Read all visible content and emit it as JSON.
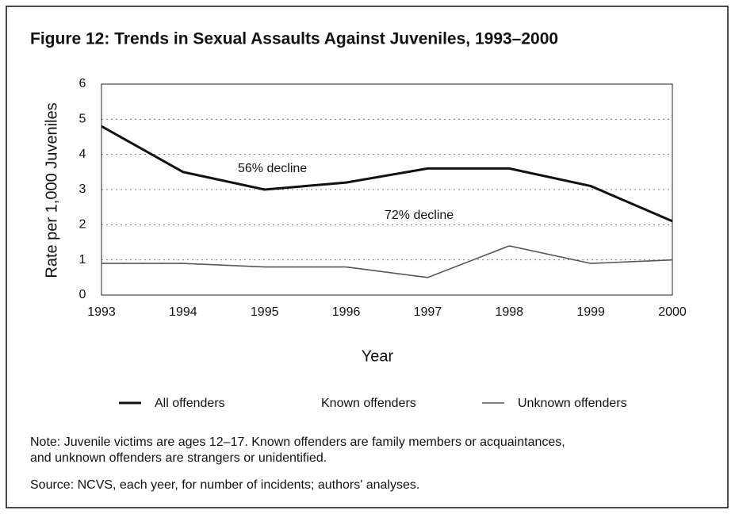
{
  "chart_data": {
    "type": "line",
    "title": "Figure 12: Trends in Sexual Assaults Against Juveniles, 1993–2000",
    "x_label": "Year",
    "y_label": "Rate per 1,000 Juveniles",
    "categories": [
      "1993",
      "1994",
      "1995",
      "1996",
      "1997",
      "1998",
      "1999",
      "2000"
    ],
    "series": [
      {
        "name": "All offenders",
        "color": "#111111",
        "values": [
          4.8,
          3.5,
          3.0,
          3.2,
          3.6,
          3.6,
          3.1,
          2.1
        ]
      },
      {
        "name": "Known offenders",
        "color": "#ffffff",
        "values": [
          null,
          null,
          null,
          null,
          null,
          null,
          null,
          null
        ]
      },
      {
        "name": "Unknown offenders",
        "color": "#555555",
        "values": [
          0.9,
          0.9,
          0.8,
          0.8,
          0.5,
          1.4,
          0.9,
          1.0
        ]
      }
    ],
    "annotations": [
      "56% decline",
      "72% decline"
    ],
    "ylim": [
      0,
      6
    ],
    "yticks": [
      0,
      1,
      2,
      3,
      4,
      5,
      6
    ],
    "grid": true,
    "legend": "bottom",
    "note": "Note: Juvenile victims are ages 12–17. Known offenders are family members or acquaintances,",
    "note2": "and unknown offenders are strangers or unidentified.",
    "source": "Source: NCVS, each yeer, for number of incidents; authors' analyses."
  }
}
